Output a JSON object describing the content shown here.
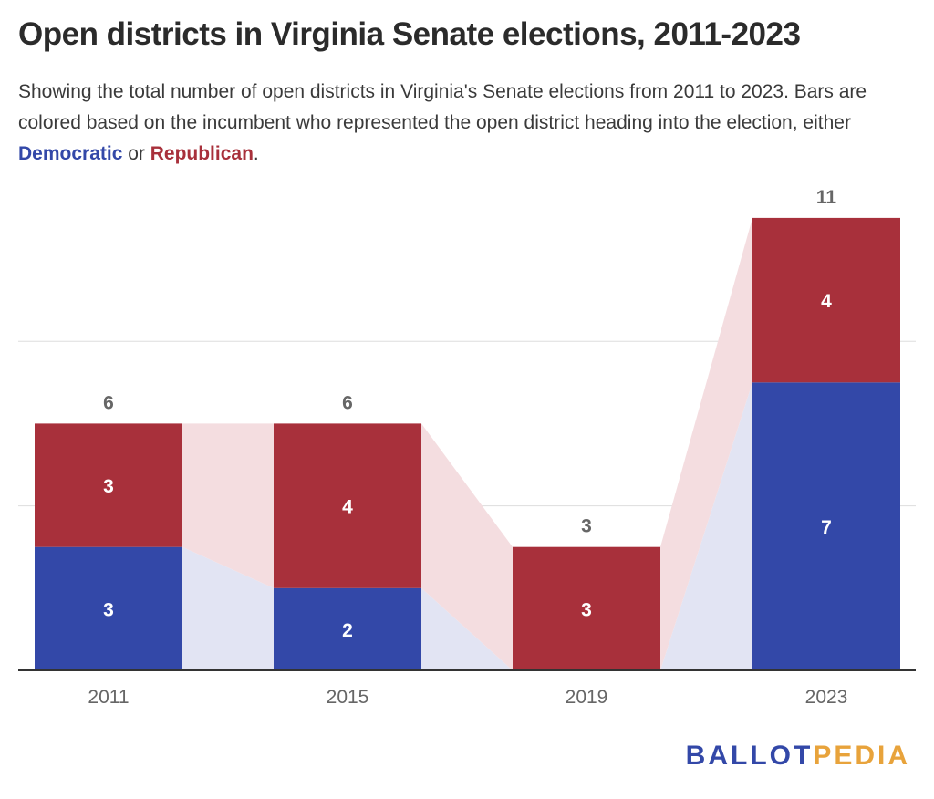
{
  "title": "Open districts in Virginia Senate elections, 2011-2023",
  "subtitle": {
    "part1": "Showing the total number of open districts in Virginia's Senate elections from 2011 to 2023. Bars are colored based on the incumbent who represented the open district heading into the election, either ",
    "dem_word": "Democratic",
    "part2": " or ",
    "rep_word": "Republican",
    "part3": "."
  },
  "logo": {
    "part1": "BALLOT",
    "part2": "PEDIA"
  },
  "colors": {
    "democratic": "#3348a8",
    "republican": "#a8303b",
    "democratic_band": "#e2e4f3",
    "republican_band": "#f4dde0",
    "gridline": "#dddddd",
    "axis": "#333333"
  },
  "chart_data": {
    "type": "bar",
    "stacked": true,
    "categories": [
      "2011",
      "2015",
      "2019",
      "2023"
    ],
    "series": [
      {
        "name": "Democratic",
        "values": [
          3,
          2,
          0,
          7
        ]
      },
      {
        "name": "Republican",
        "values": [
          3,
          4,
          3,
          4
        ]
      }
    ],
    "totals": [
      6,
      6,
      3,
      11
    ],
    "ylim": [
      0,
      12
    ],
    "grid": true,
    "legend": "none"
  }
}
